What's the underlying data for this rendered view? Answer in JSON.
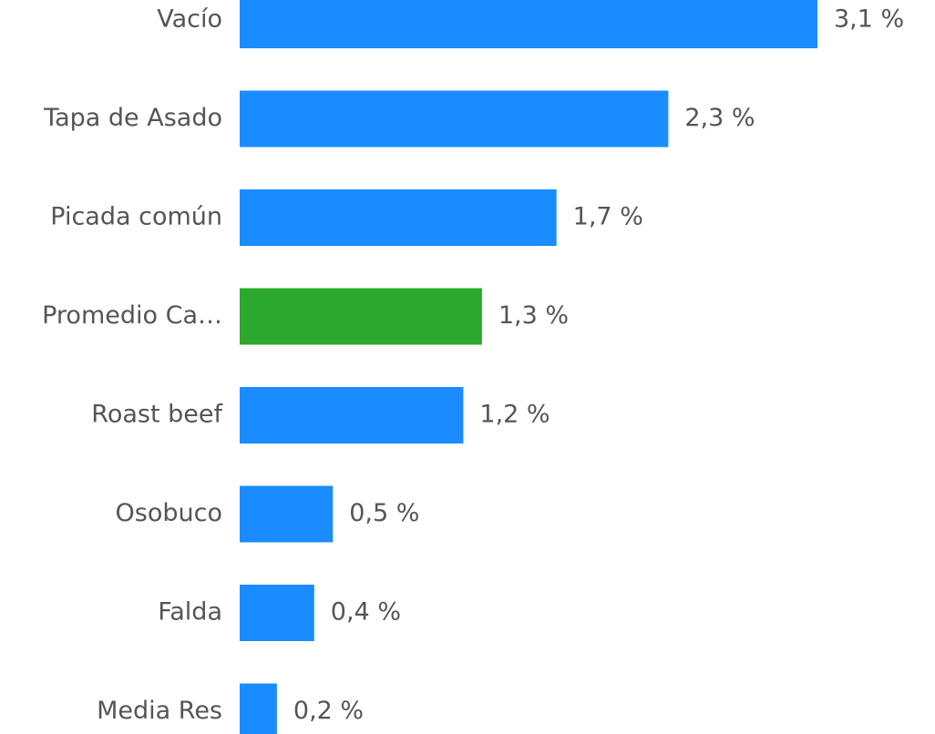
{
  "chart_data": {
    "type": "bar",
    "orientation": "horizontal",
    "categories": [
      "Vacío",
      "Tapa de Asado",
      "Picada común",
      "Promedio Ca…",
      "Roast beef",
      "Osobuco",
      "Falda",
      "Media Res"
    ],
    "values": [
      3.1,
      2.3,
      1.7,
      1.3,
      1.2,
      0.5,
      0.4,
      0.2
    ],
    "value_labels": [
      "3,1 %",
      "2,3 %",
      "1,7 %",
      "1,3 %",
      "1,2 %",
      "0,5 %",
      "0,4 %",
      "0,2 %"
    ],
    "colors": [
      "#1a8cff",
      "#1a8cff",
      "#1a8cff",
      "#2ca82c",
      "#1a8cff",
      "#1a8cff",
      "#1a8cff",
      "#1a8cff"
    ]
  }
}
